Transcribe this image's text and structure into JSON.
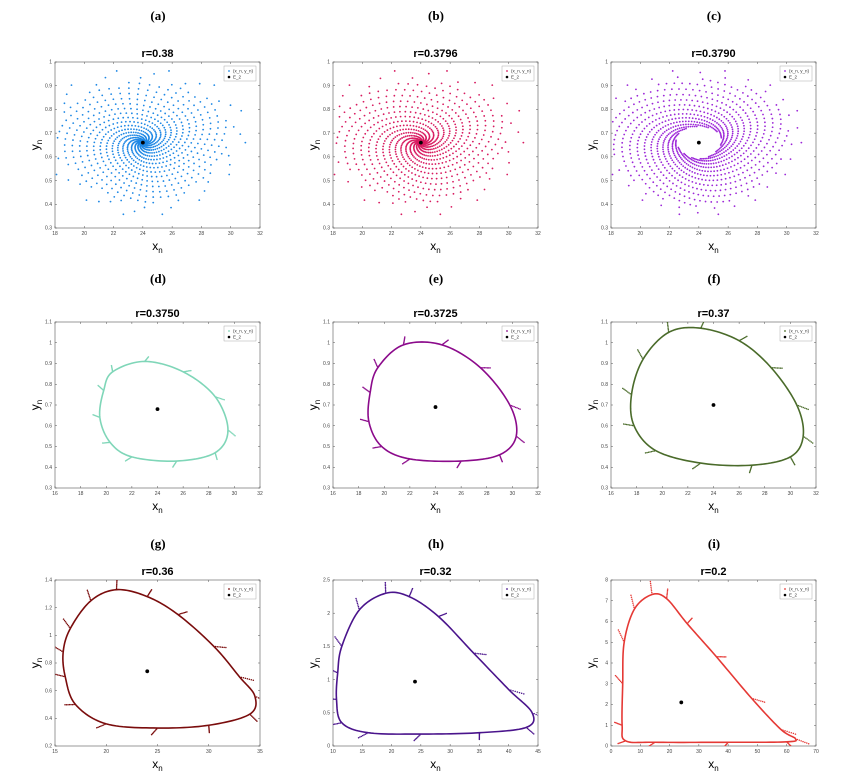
{
  "chart_data": [
    {
      "type": "scatter",
      "letter": "(a)",
      "title": "r=0.38",
      "pattern": "spiral",
      "color": "#1e88e5",
      "style": "dots",
      "turns": 2.2,
      "xlabel": "x",
      "xlabel_sub": "n",
      "ylabel": "y",
      "ylabel_sub": "n",
      "xlim": [
        18,
        32
      ],
      "ylim": [
        0.3,
        1.0
      ],
      "xticks": [
        "18",
        "20",
        "22",
        "24",
        "26",
        "28",
        "30",
        "32"
      ],
      "yticks": [
        "0.3",
        "0.4",
        "0.5",
        "0.6",
        "0.7",
        "0.8",
        "0.9",
        "1"
      ],
      "xticks_v": [
        18,
        20,
        22,
        24,
        26,
        28,
        30,
        32
      ],
      "yticks_v": [
        0.3,
        0.4,
        0.5,
        0.6,
        0.7,
        0.8,
        0.9,
        1.0
      ],
      "equilibrium": [
        24,
        0.66
      ],
      "radius_x": 7,
      "radius_y": 0.31,
      "legend": [
        "(x_n, y_n)",
        "E_2"
      ]
    },
    {
      "type": "scatter",
      "letter": "(b)",
      "title": "r=0.3796",
      "pattern": "spiral",
      "color": "#d81b60",
      "style": "dots",
      "turns": 2.0,
      "xlabel": "x",
      "xlabel_sub": "n",
      "ylabel": "y",
      "ylabel_sub": "n",
      "xlim": [
        18,
        32
      ],
      "ylim": [
        0.3,
        1.0
      ],
      "xticks": [
        "18",
        "20",
        "22",
        "24",
        "26",
        "28",
        "30",
        "32"
      ],
      "yticks": [
        "0.3",
        "0.4",
        "0.5",
        "0.6",
        "0.7",
        "0.8",
        "0.9",
        "1"
      ],
      "xticks_v": [
        18,
        20,
        22,
        24,
        26,
        28,
        30,
        32
      ],
      "yticks_v": [
        0.3,
        0.4,
        0.5,
        0.6,
        0.7,
        0.8,
        0.9,
        1.0
      ],
      "equilibrium": [
        24,
        0.66
      ],
      "radius_x": 7,
      "radius_y": 0.31,
      "legend": [
        "(x_n, y_n)",
        "E_2"
      ]
    },
    {
      "type": "scatter",
      "letter": "(c)",
      "title": "r=0.3790",
      "pattern": "spiral",
      "color": "#9c27d8",
      "style": "dots",
      "turns": 1.6,
      "inner_radius": 0.22,
      "xlabel": "x",
      "xlabel_sub": "n",
      "ylabel": "y",
      "ylabel_sub": "n",
      "xlim": [
        18,
        32
      ],
      "ylim": [
        0.3,
        1.0
      ],
      "xticks": [
        "18",
        "20",
        "22",
        "24",
        "26",
        "28",
        "30",
        "32"
      ],
      "yticks": [
        "0.3",
        "0.4",
        "0.5",
        "0.6",
        "0.7",
        "0.8",
        "0.9",
        "1"
      ],
      "xticks_v": [
        18,
        20,
        22,
        24,
        26,
        28,
        30,
        32
      ],
      "yticks_v": [
        0.3,
        0.4,
        0.5,
        0.6,
        0.7,
        0.8,
        0.9,
        1.0
      ],
      "equilibrium": [
        24,
        0.66
      ],
      "radius_x": 7,
      "radius_y": 0.31,
      "legend": [
        "(x_n, y_n)",
        "E_2"
      ]
    },
    {
      "type": "scatter",
      "letter": "(d)",
      "title": "r=0.3750",
      "pattern": "limitcycle",
      "color": "#7fd6b8",
      "style": "dots",
      "xlabel": "x",
      "xlabel_sub": "n",
      "ylabel": "y",
      "ylabel_sub": "n",
      "xlim": [
        16,
        32
      ],
      "ylim": [
        0.3,
        1.1
      ],
      "xticks": [
        "16",
        "18",
        "20",
        "22",
        "24",
        "26",
        "28",
        "30",
        "32"
      ],
      "yticks": [
        "0.3",
        "0.4",
        "0.5",
        "0.6",
        "0.7",
        "0.8",
        "0.9",
        "1",
        "1.1"
      ],
      "xticks_v": [
        16,
        18,
        20,
        22,
        24,
        26,
        28,
        30,
        32
      ],
      "yticks_v": [
        0.3,
        0.4,
        0.5,
        0.6,
        0.7,
        0.8,
        0.9,
        1.0,
        1.1
      ],
      "equilibrium": [
        24,
        0.68
      ],
      "cycle": [
        [
          20.5,
          0.86
        ],
        [
          23,
          0.91
        ],
        [
          26,
          0.86
        ],
        [
          28.5,
          0.74
        ],
        [
          29.5,
          0.58
        ],
        [
          28.5,
          0.47
        ],
        [
          25.5,
          0.43
        ],
        [
          22,
          0.45
        ],
        [
          20.3,
          0.52
        ],
        [
          19.5,
          0.64
        ],
        [
          19.8,
          0.77
        ]
      ],
      "legend": [
        "(x_n, y_n)",
        "E_2"
      ]
    },
    {
      "type": "scatter",
      "letter": "(e)",
      "title": "r=0.3725",
      "pattern": "limitcycle",
      "color": "#8b0a8b",
      "style": "dots",
      "xlabel": "x",
      "xlabel_sub": "n",
      "ylabel": "y",
      "ylabel_sub": "n",
      "xlim": [
        16,
        32
      ],
      "ylim": [
        0.3,
        1.1
      ],
      "xticks": [
        "16",
        "18",
        "20",
        "22",
        "24",
        "26",
        "28",
        "30",
        "32"
      ],
      "yticks": [
        "0.3",
        "0.4",
        "0.5",
        "0.6",
        "0.7",
        "0.8",
        "0.9",
        "1",
        "1.1"
      ],
      "xticks_v": [
        16,
        18,
        20,
        22,
        24,
        26,
        28,
        30,
        32
      ],
      "yticks_v": [
        0.3,
        0.4,
        0.5,
        0.6,
        0.7,
        0.8,
        0.9,
        1.0,
        1.1
      ],
      "equilibrium": [
        24,
        0.69
      ],
      "cycle": [
        [
          19.5,
          0.88
        ],
        [
          21.5,
          0.99
        ],
        [
          24.5,
          0.99
        ],
        [
          27.5,
          0.88
        ],
        [
          29.8,
          0.7
        ],
        [
          30.3,
          0.55
        ],
        [
          29,
          0.46
        ],
        [
          26,
          0.43
        ],
        [
          22,
          0.44
        ],
        [
          19.8,
          0.5
        ],
        [
          18.8,
          0.62
        ],
        [
          18.9,
          0.76
        ]
      ],
      "legend": [
        "(x_n, y_n)",
        "E_2"
      ]
    },
    {
      "type": "scatter",
      "letter": "(f)",
      "title": "r=0.37",
      "pattern": "limitcycle",
      "color": "#4a6b2a",
      "style": "dots",
      "xlabel": "x",
      "xlabel_sub": "n",
      "ylabel": "y",
      "ylabel_sub": "n",
      "xlim": [
        16,
        32
      ],
      "ylim": [
        0.3,
        1.1
      ],
      "xticks": [
        "16",
        "18",
        "20",
        "22",
        "24",
        "26",
        "28",
        "30",
        "32"
      ],
      "yticks": [
        "0.3",
        "0.4",
        "0.5",
        "0.6",
        "0.7",
        "0.8",
        "0.9",
        "1",
        "1.1"
      ],
      "xticks_v": [
        16,
        18,
        20,
        22,
        24,
        26,
        28,
        30,
        32
      ],
      "yticks_v": [
        0.3,
        0.4,
        0.5,
        0.6,
        0.7,
        0.8,
        0.9,
        1.0,
        1.1
      ],
      "equilibrium": [
        24,
        0.7
      ],
      "cycle": [
        [
          18.5,
          0.92
        ],
        [
          20.5,
          1.05
        ],
        [
          23,
          1.07
        ],
        [
          26,
          1.01
        ],
        [
          28.5,
          0.88
        ],
        [
          30.5,
          0.7
        ],
        [
          31,
          0.55
        ],
        [
          30,
          0.45
        ],
        [
          27,
          0.41
        ],
        [
          23,
          0.42
        ],
        [
          19.5,
          0.48
        ],
        [
          17.8,
          0.6
        ],
        [
          17.6,
          0.75
        ]
      ],
      "legend": [
        "(x_n, y_n)",
        "E_2"
      ]
    },
    {
      "type": "scatter",
      "letter": "(g)",
      "title": "r=0.36",
      "pattern": "limitcycle",
      "color": "#7a0c0c",
      "style": "dots",
      "xlabel": "x",
      "xlabel_sub": "n",
      "ylabel": "y",
      "ylabel_sub": "n",
      "xlim": [
        15,
        35
      ],
      "ylim": [
        0.2,
        1.4
      ],
      "xticks": [
        "15",
        "20",
        "25",
        "30",
        "35"
      ],
      "yticks": [
        "0.2",
        "0.4",
        "0.6",
        "0.8",
        "1",
        "1.2",
        "1.4"
      ],
      "xticks_v": [
        15,
        20,
        25,
        30,
        35
      ],
      "yticks_v": [
        0.2,
        0.4,
        0.6,
        0.8,
        1.0,
        1.2,
        1.4
      ],
      "equilibrium": [
        24,
        0.74
      ],
      "cycle": [
        [
          16.5,
          1.05
        ],
        [
          18.5,
          1.25
        ],
        [
          21,
          1.33
        ],
        [
          24,
          1.28
        ],
        [
          27,
          1.15
        ],
        [
          30.5,
          0.92
        ],
        [
          33,
          0.7
        ],
        [
          34.5,
          0.56
        ],
        [
          34,
          0.43
        ],
        [
          30,
          0.35
        ],
        [
          25,
          0.33
        ],
        [
          20,
          0.36
        ],
        [
          17,
          0.5
        ],
        [
          16,
          0.7
        ],
        [
          15.8,
          0.88
        ]
      ],
      "legend": [
        "(x_n, y_n)",
        "E_2"
      ]
    },
    {
      "type": "scatter",
      "letter": "(h)",
      "title": "r=0.32",
      "pattern": "limitcycle",
      "color": "#4a148c",
      "style": "dots",
      "xlabel": "x",
      "xlabel_sub": "n",
      "ylabel": "y",
      "ylabel_sub": "n",
      "xlim": [
        10,
        45
      ],
      "ylim": [
        0,
        2.5
      ],
      "xticks": [
        "10",
        "15",
        "20",
        "25",
        "30",
        "35",
        "40",
        "45"
      ],
      "yticks": [
        "0",
        "0.5",
        "1",
        "1.5",
        "2",
        "2.5"
      ],
      "xticks_v": [
        10,
        15,
        20,
        25,
        30,
        35,
        40,
        45
      ],
      "yticks_v": [
        0,
        0.5,
        1.0,
        1.5,
        2.0,
        2.5
      ],
      "equilibrium": [
        24,
        0.97
      ],
      "cycle": [
        [
          11.5,
          1.5
        ],
        [
          14.5,
          2.05
        ],
        [
          19,
          2.3
        ],
        [
          23,
          2.25
        ],
        [
          28,
          1.95
        ],
        [
          34,
          1.4
        ],
        [
          40,
          0.85
        ],
        [
          44,
          0.5
        ],
        [
          43,
          0.28
        ],
        [
          35,
          0.2
        ],
        [
          25,
          0.18
        ],
        [
          16,
          0.2
        ],
        [
          11.5,
          0.35
        ],
        [
          10.6,
          0.7
        ],
        [
          10.8,
          1.1
        ]
      ],
      "legend": [
        "(x_n, y_n)",
        "E_2"
      ]
    },
    {
      "type": "scatter",
      "letter": "(i)",
      "title": "r=0.2",
      "pattern": "limitcycle",
      "color": "#e53935",
      "style": "dots",
      "xlabel": "x",
      "xlabel_sub": "n",
      "ylabel": "y",
      "ylabel_sub": "n",
      "xlim": [
        0,
        70
      ],
      "ylim": [
        0,
        8
      ],
      "xticks": [
        "0",
        "10",
        "20",
        "30",
        "40",
        "50",
        "60",
        "70"
      ],
      "yticks": [
        "0",
        "1",
        "2",
        "3",
        "4",
        "5",
        "6",
        "7",
        "8"
      ],
      "xticks_v": [
        0,
        10,
        20,
        30,
        40,
        50,
        60,
        70
      ],
      "yticks_v": [
        0,
        1,
        2,
        3,
        4,
        5,
        6,
        7,
        8
      ],
      "equilibrium": [
        24,
        2.1
      ],
      "cycle": [
        [
          4.5,
          5
        ],
        [
          8,
          6.6
        ],
        [
          14,
          7.3
        ],
        [
          19,
          7.1
        ],
        [
          26,
          5.9
        ],
        [
          36,
          4.3
        ],
        [
          48,
          2.3
        ],
        [
          58,
          0.8
        ],
        [
          63,
          0.35
        ],
        [
          60,
          0.2
        ],
        [
          40,
          0.18
        ],
        [
          15,
          0.18
        ],
        [
          5,
          0.25
        ],
        [
          3.8,
          1
        ],
        [
          4,
          3
        ]
      ],
      "legend": [
        "(x_n, y_n)",
        "E_2"
      ]
    }
  ]
}
